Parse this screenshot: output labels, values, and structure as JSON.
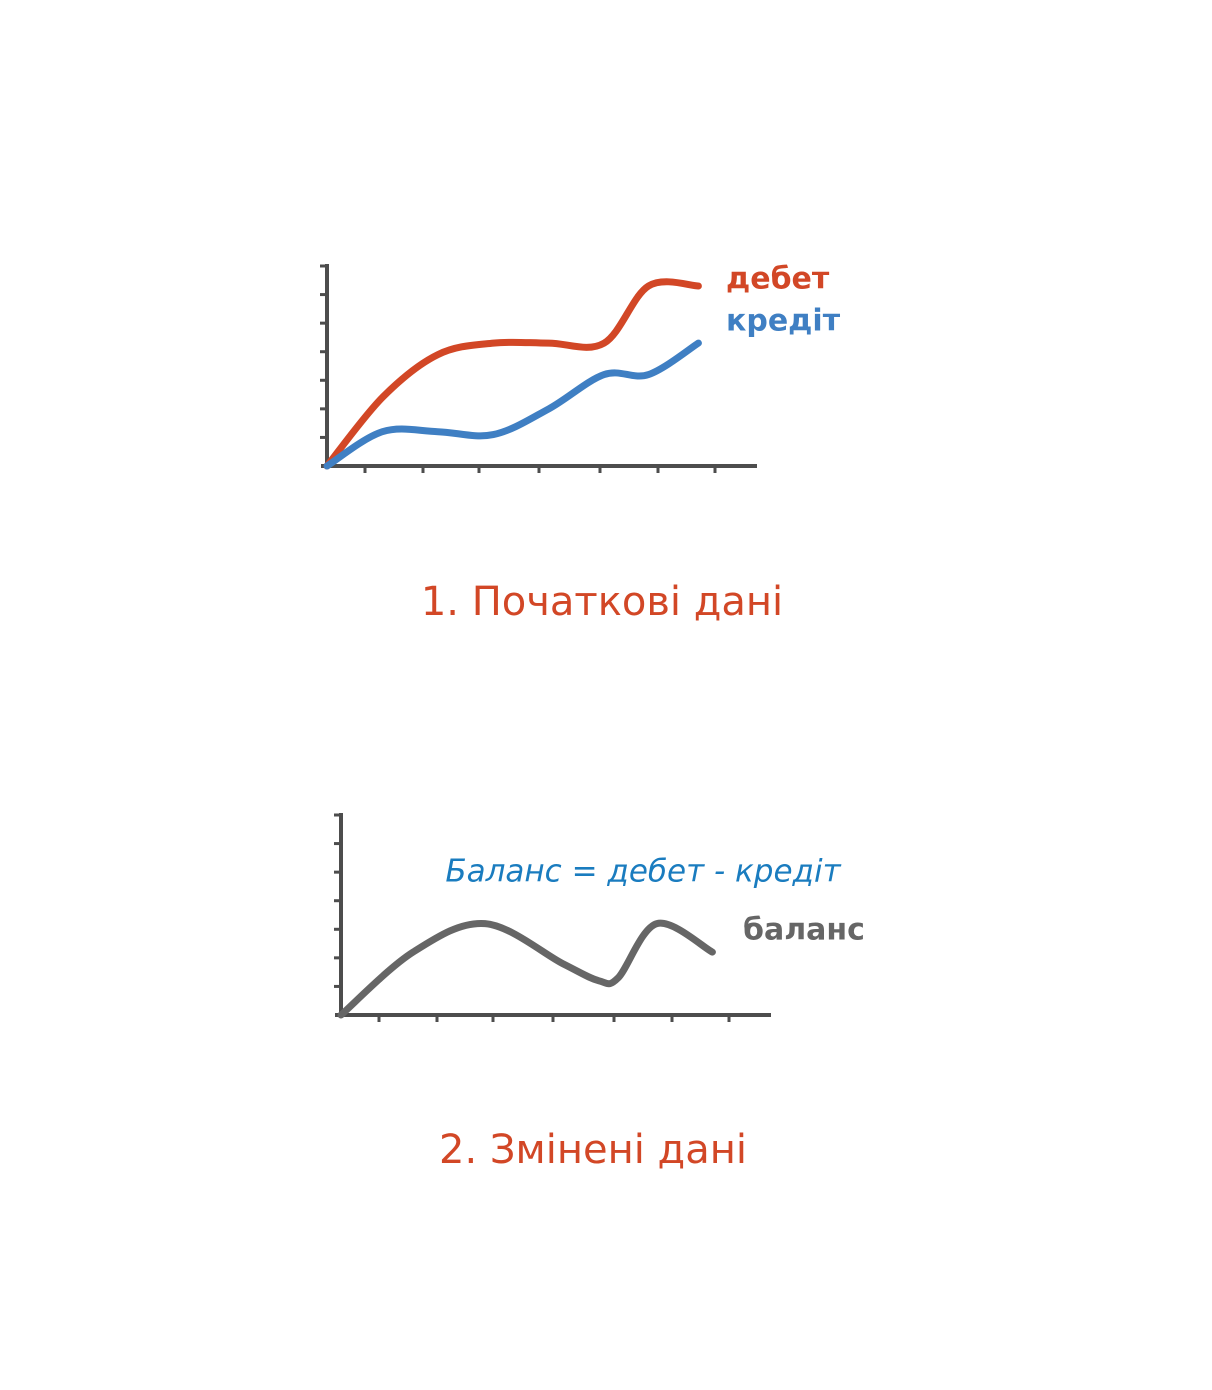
{
  "chart_data": [
    {
      "type": "line",
      "caption": "1. Початкові дані",
      "grid": false,
      "x_ticks": 7,
      "y_ticks": 7,
      "xlim": [
        0,
        7
      ],
      "ylim": [
        0,
        7
      ],
      "x": [
        0,
        1,
        2,
        3,
        4,
        5,
        5.8,
        6.7
      ],
      "series": [
        {
          "name": "дебет",
          "color": "#d24726",
          "values": [
            0,
            2.4,
            3.9,
            4.3,
            4.3,
            4.3,
            6.3,
            6.3
          ]
        },
        {
          "name": "кредіт",
          "color": "#3f7fc3",
          "values": [
            0,
            1.2,
            1.2,
            1.1,
            2.0,
            3.2,
            3.2,
            4.3
          ]
        }
      ]
    },
    {
      "type": "line",
      "caption": "2. Змінені дані",
      "annotation": "Баланс = дебет - кредіт",
      "annotation_color": "#1a7cbf",
      "grid": false,
      "x_ticks": 7,
      "y_ticks": 7,
      "xlim": [
        0,
        7
      ],
      "ylim": [
        0,
        7
      ],
      "x": [
        0,
        1.3,
        2.6,
        4.0,
        4.65,
        5.0,
        5.7,
        6.7
      ],
      "series": [
        {
          "name": "баланс",
          "color": "#666666",
          "values": [
            0,
            2.2,
            3.2,
            1.8,
            1.2,
            1.3,
            3.2,
            2.2
          ]
        }
      ]
    }
  ],
  "caption_color": "#d24726",
  "axis_color": "#4d4d4d"
}
